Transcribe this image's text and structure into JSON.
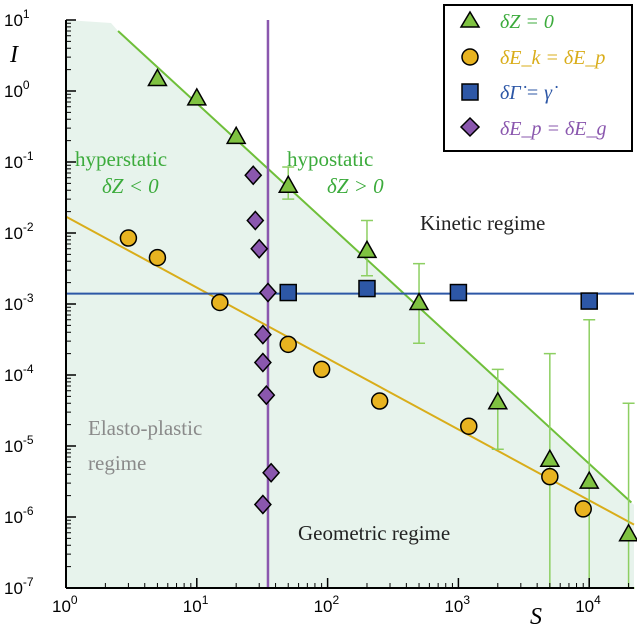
{
  "chart_data": {
    "type": "scatter",
    "x_scale": "log",
    "y_scale": "log",
    "xlim": [
      1,
      22000
    ],
    "ylim": [
      1e-07,
      10
    ],
    "xlabel": "S",
    "ylabel": "I",
    "x_ticks": [
      {
        "value": 1,
        "base": "10",
        "exp": "0"
      },
      {
        "value": 10,
        "base": "10",
        "exp": "1"
      },
      {
        "value": 100,
        "base": "10",
        "exp": "2"
      },
      {
        "value": 1000,
        "base": "10",
        "exp": "3"
      },
      {
        "value": 10000,
        "base": "10",
        "exp": "4"
      }
    ],
    "y_ticks": [
      {
        "value": 10,
        "base": "10",
        "exp": "1"
      },
      {
        "value": 1,
        "base": "10",
        "exp": "0"
      },
      {
        "value": 0.1,
        "base": "10",
        "exp": "-1"
      },
      {
        "value": 0.01,
        "base": "10",
        "exp": "-2"
      },
      {
        "value": 0.001,
        "base": "10",
        "exp": "-3"
      },
      {
        "value": 0.0001,
        "base": "10",
        "exp": "-4"
      },
      {
        "value": 1e-05,
        "base": "10",
        "exp": "-5"
      },
      {
        "value": 1e-06,
        "base": "10",
        "exp": "-6"
      },
      {
        "value": 1e-07,
        "base": "10",
        "exp": "-7"
      }
    ],
    "grid": false,
    "legend_position": "top-right",
    "series": [
      {
        "name": "δZ = 0",
        "marker": "triangle",
        "color": "#7fc241",
        "points": [
          {
            "x": 5,
            "y": 1.5
          },
          {
            "x": 10,
            "y": 0.8
          },
          {
            "x": 20,
            "y": 0.23
          },
          {
            "x": 50,
            "y": 0.047,
            "err": [
              0.03,
              0.085
            ]
          },
          {
            "x": 200,
            "y": 0.0057,
            "err": [
              0.0025,
              0.015
            ]
          },
          {
            "x": 500,
            "y": 0.00105,
            "err": [
              0.00028,
              0.0037
            ]
          },
          {
            "x": 2000,
            "y": 4.2e-05,
            "err": [
              9e-06,
              0.00012
            ]
          },
          {
            "x": 5000,
            "y": 6.5e-06,
            "err": [
              1e-07,
              0.0002
            ]
          },
          {
            "x": 10000,
            "y": 3.2e-06,
            "err": [
              1e-07,
              0.0006
            ]
          },
          {
            "x": 20000,
            "y": 5.8e-07,
            "err": [
              1e-07,
              4e-05
            ]
          }
        ]
      },
      {
        "name": "δE_k = δE_p",
        "marker": "circle",
        "color": "#e8b320",
        "points": [
          {
            "x": 3,
            "y": 0.0085
          },
          {
            "x": 5,
            "y": 0.0045
          },
          {
            "x": 15,
            "y": 0.00105
          },
          {
            "x": 50,
            "y": 0.00027
          },
          {
            "x": 90,
            "y": 0.00012
          },
          {
            "x": 250,
            "y": 4.3e-05
          },
          {
            "x": 1200,
            "y": 1.9e-05
          },
          {
            "x": 5000,
            "y": 3.7e-06
          },
          {
            "x": 9000,
            "y": 1.3e-06
          }
        ]
      },
      {
        "name": "δΓ̇ = γ̇",
        "marker": "square",
        "color": "#2d57a6",
        "points": [
          {
            "x": 50,
            "y": 0.00145
          },
          {
            "x": 200,
            "y": 0.00165
          },
          {
            "x": 1000,
            "y": 0.00145
          },
          {
            "x": 10000,
            "y": 0.0011
          }
        ]
      },
      {
        "name": "δE_p = δE_g",
        "marker": "diamond",
        "color": "#8a57ae",
        "points": [
          {
            "x": 27,
            "y": 0.065
          },
          {
            "x": 28,
            "y": 0.015
          },
          {
            "x": 30,
            "y": 0.006
          },
          {
            "x": 35,
            "y": 0.00145
          },
          {
            "x": 32,
            "y": 0.00037
          },
          {
            "x": 32,
            "y": 0.00015
          },
          {
            "x": 34,
            "y": 5.2e-05
          },
          {
            "x": 37,
            "y": 4.2e-06
          },
          {
            "x": 32,
            "y": 1.5e-06
          }
        ]
      }
    ],
    "lines": [
      {
        "kind": "green-power-law",
        "color": "#6fbf3a",
        "from": {
          "x": 2.5,
          "y": 7
        },
        "to": {
          "x": 21000,
          "y": 1.6e-06
        }
      },
      {
        "kind": "yellow-power-law",
        "color": "#d9ad1a",
        "from": {
          "x": 1,
          "y": 0.017
        },
        "to": {
          "x": 22000,
          "y": 7.8e-07
        }
      },
      {
        "kind": "horizontal",
        "color": "#2d57a6",
        "y": 0.0014
      },
      {
        "kind": "vertical",
        "color": "#8a57ae",
        "x": 35
      }
    ],
    "annotations": {
      "hyperstatic": "hyperstatic",
      "hyperstatic_eq": "δZ < 0",
      "hypostatic": "hypostatic",
      "hypostatic_eq": "δZ > 0",
      "kinetic": "Kinetic regime",
      "elasto_1": "Elasto-plastic",
      "elasto_2": "regime",
      "geometric": "Geometric regime"
    }
  }
}
